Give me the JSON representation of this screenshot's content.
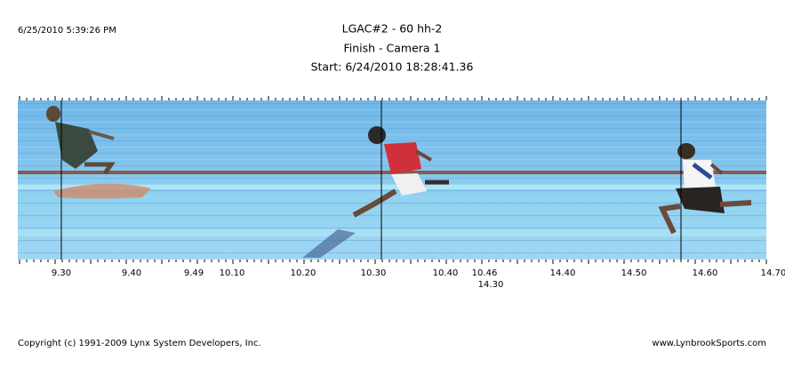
{
  "header": {
    "timestamp": "6/25/2010 5:39:26 PM",
    "title": "LGAC#2 - 60 hh-2",
    "subtitle": "Finish - Camera 1",
    "start": "Start: 6/24/2010 18:28:41.36"
  },
  "photo": {
    "time_labels": [
      "9.30",
      "9.40",
      "9.49",
      "10.10",
      "10.20",
      "10.30",
      "10.40",
      "10.46",
      "14.40",
      "14.50",
      "14.60",
      "14.70"
    ],
    "lower_label": "14.30"
  },
  "footer": {
    "copyright": "Copyright (c) 1991-2009 Lynx System Developers, Inc.",
    "website": "www.LynbrookSports.com"
  }
}
